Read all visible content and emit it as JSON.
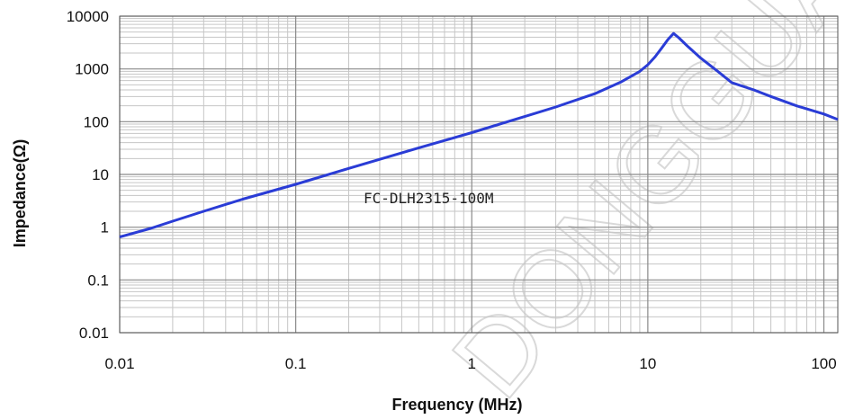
{
  "chart_data": {
    "type": "line",
    "xlabel": "Frequency (MHz)",
    "ylabel": "Impedance(Ω)",
    "x_scale": "log",
    "y_scale": "log",
    "xlim": [
      0.01,
      120
    ],
    "ylim": [
      0.01,
      10000
    ],
    "x_ticks": [
      "0.01",
      "0.1",
      "1",
      "10",
      "100"
    ],
    "y_ticks": [
      "0.01",
      "0.1",
      "1",
      "10",
      "100",
      "1000",
      "10000"
    ],
    "grid": true,
    "annotation": "FC-DLH2315-100M",
    "series_color": "#2a3cd6",
    "series": [
      {
        "x": [
          0.01,
          0.015,
          0.02,
          0.03,
          0.05,
          0.1,
          0.2,
          0.5,
          1,
          2,
          3,
          5,
          7,
          9,
          10,
          11,
          12,
          13,
          14,
          15,
          17,
          20,
          25,
          30,
          40,
          50,
          70,
          100,
          120
        ],
        "y": [
          0.65,
          0.95,
          1.3,
          2.0,
          3.4,
          6.5,
          13,
          32,
          62,
          125,
          190,
          340,
          560,
          900,
          1200,
          1700,
          2500,
          3600,
          4700,
          3900,
          2600,
          1600,
          900,
          550,
          400,
          300,
          200,
          140,
          110
        ]
      }
    ]
  },
  "watermark": "DONGGUAN"
}
